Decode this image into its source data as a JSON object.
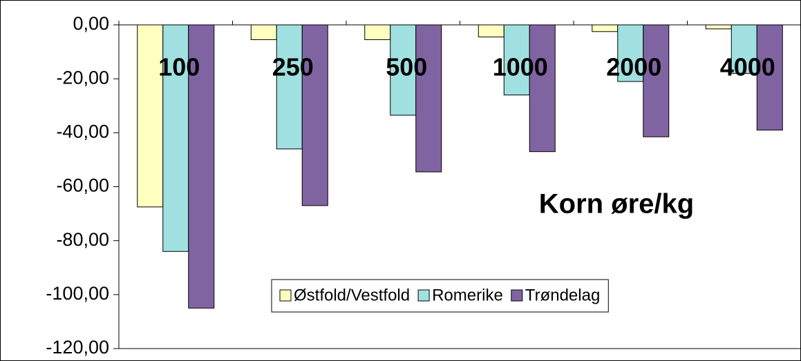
{
  "chart_data": {
    "type": "bar",
    "annotation": "Korn øre/kg",
    "categories": [
      "100",
      "250",
      "500",
      "1000",
      "2000",
      "4000"
    ],
    "series": [
      {
        "name": "Østfold/Vestfold",
        "color": "#ffffc0",
        "values": [
          -67.5,
          -5.5,
          -5.5,
          -4.5,
          -2.5,
          -1.5
        ]
      },
      {
        "name": "Romerike",
        "color": "#a0e0e0",
        "values": [
          -84,
          -46,
          -33.5,
          -26,
          -21,
          -18
        ]
      },
      {
        "name": "Trøndelag",
        "color": "#8064a2",
        "values": [
          -105,
          -67,
          -54.5,
          -47,
          -41.5,
          -39
        ]
      }
    ],
    "ylim": [
      -120,
      0
    ],
    "yticks": [
      {
        "value": 0,
        "label": "0,00"
      },
      {
        "value": -20,
        "label": "-20,00"
      },
      {
        "value": -40,
        "label": "-40,00"
      },
      {
        "value": -60,
        "label": "-60,00"
      },
      {
        "value": -80,
        "label": "-80,00"
      },
      {
        "value": -100,
        "label": "-100,00"
      },
      {
        "value": -120,
        "label": "-120,00"
      }
    ],
    "legend": "bottom-right"
  }
}
